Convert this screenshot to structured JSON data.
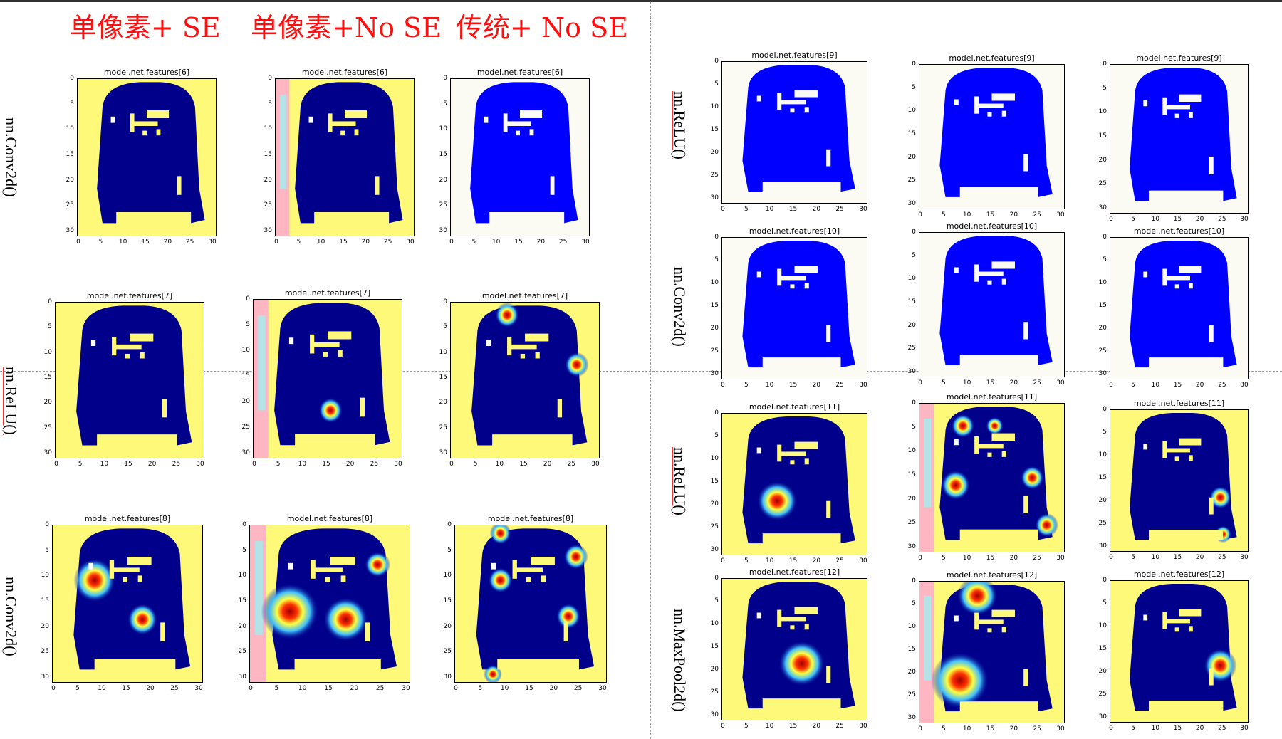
{
  "headers": [
    "单像素+ SE",
    "单像素+No SE",
    "传统+ No SE"
  ],
  "left_rows": [
    "nn.Conv2d()",
    "nn.ReLU()",
    "nn.Conv2d()"
  ],
  "right_rows": [
    "nn.ReLU()",
    "nn.Conv2d()",
    "nn.ReLU()",
    "nn.MaxPool2d()"
  ],
  "ticks": {
    "y": [
      "0",
      "5",
      "10",
      "15",
      "20",
      "25",
      "30"
    ],
    "x": [
      "0",
      "5",
      "10",
      "15",
      "20",
      "25",
      "30"
    ]
  },
  "left_panels": [
    [
      "model.net.features[6]",
      "model.net.features[6]",
      "model.net.features[6]"
    ],
    [
      "model.net.features[7]",
      "model.net.features[7]",
      "model.net.features[7]"
    ],
    [
      "model.net.features[8]",
      "model.net.features[8]",
      "model.net.features[8]"
    ]
  ],
  "right_panels": [
    [
      "model.net.features[9]",
      "model.net.features[9]",
      "model.net.features[9]"
    ],
    [
      "model.net.features[10]",
      "model.net.features[10]",
      "model.net.features[10]"
    ],
    [
      "model.net.features[11]",
      "model.net.features[11]",
      "model.net.features[11]"
    ],
    [
      "model.net.features[12]",
      "model.net.features[12]",
      "model.net.features[12]"
    ]
  ],
  "colors": {
    "header": "#ff1010",
    "navy": "#00008b",
    "blue": "#0000ff",
    "yellow": "#fff97a"
  }
}
